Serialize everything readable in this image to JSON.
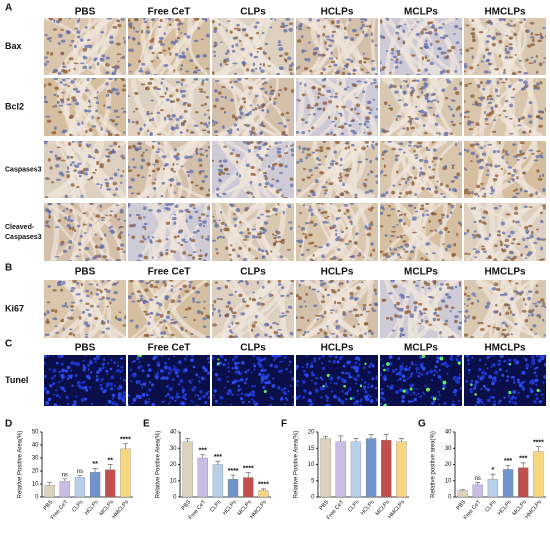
{
  "panels": [
    {
      "label": "A",
      "columns": [
        "PBS",
        "Free CeT",
        "CLPs",
        "HCLPs",
        "MCLPs",
        "HMCLPs"
      ],
      "rows": [
        [
          "Bax"
        ],
        [
          "Bcl2"
        ],
        [
          "Caspases3"
        ],
        [
          "Cleaved-",
          "Caspases3"
        ]
      ]
    },
    {
      "label": "B",
      "columns": [
        "PBS",
        "Free CeT",
        "CLPs",
        "HCLPs",
        "MCLPs",
        "HMCLPs"
      ],
      "rows": [
        [
          "Ki67"
        ]
      ]
    },
    {
      "label": "C",
      "columns": [
        "PBS",
        "Free CeT",
        "CLPs",
        "HCLPs",
        "MCLPs",
        "HMCLPs"
      ],
      "rows": [
        [
          "Tunel"
        ]
      ]
    }
  ],
  "chart_data": [
    {
      "type": "bar",
      "label": "D",
      "ylabel": "Relative Positive Area(%)",
      "categories": [
        "PBS",
        "Free CeT",
        "CLPs",
        "HCLPs",
        "MCLPs",
        "HMCLPs"
      ],
      "values": [
        9,
        12,
        15,
        19,
        21,
        37
      ],
      "errors": [
        2,
        2,
        1.5,
        3,
        4,
        4
      ],
      "significance": [
        null,
        "ns",
        "ns",
        "**",
        "**",
        "****"
      ],
      "colors": [
        "#ddd3bc",
        "#c9bde3",
        "#b9cfe9",
        "#7193cc",
        "#c0504d",
        "#f6d77f"
      ],
      "ylim": [
        0,
        50
      ],
      "yticks": [
        0,
        10,
        20,
        30,
        40,
        50
      ]
    },
    {
      "type": "bar",
      "label": "E",
      "ylabel": "Relative Positive Area(%)",
      "categories": [
        "PBS",
        "Free CeT",
        "CLPs",
        "HCLPs",
        "MCLPs",
        "HMCLPs"
      ],
      "values": [
        34,
        24,
        20,
        11,
        12,
        4
      ],
      "errors": [
        2,
        2,
        2,
        2.5,
        3,
        1
      ],
      "significance": [
        null,
        "***",
        "***",
        "****",
        "****",
        "****"
      ],
      "colors": [
        "#ddd3bc",
        "#c9bde3",
        "#b9cfe9",
        "#7193cc",
        "#c0504d",
        "#f6d77f"
      ],
      "ylim": [
        0,
        40
      ],
      "yticks": [
        0,
        10,
        20,
        30,
        40
      ]
    },
    {
      "type": "bar",
      "label": "F",
      "ylabel": "Relative Positive Area(%)",
      "categories": [
        "PBS",
        "Free CeT",
        "CLPs",
        "HCLPs",
        "MCLPs",
        "HMCLPs"
      ],
      "values": [
        18,
        17,
        17,
        18,
        17.5,
        17
      ],
      "errors": [
        0.7,
        1.8,
        1,
        1.2,
        1.8,
        1
      ],
      "significance": [
        null,
        null,
        null,
        null,
        null,
        null
      ],
      "colors": [
        "#ddd3bc",
        "#c9bde3",
        "#b9cfe9",
        "#7193cc",
        "#c0504d",
        "#f6d77f"
      ],
      "ylim": [
        0,
        20
      ],
      "yticks": [
        0,
        5,
        10,
        15,
        20
      ]
    },
    {
      "type": "bar",
      "label": "G",
      "ylabel": "Relative positive area(%)",
      "categories": [
        "PBS",
        "Free CeT",
        "CLPs",
        "HCLPs",
        "MCLPs",
        "HMCLPs"
      ],
      "values": [
        4,
        7.5,
        11,
        17,
        18,
        28
      ],
      "errors": [
        0.5,
        1.5,
        3,
        2.5,
        3,
        3
      ],
      "significance": [
        null,
        "ns",
        "*",
        "***",
        "***",
        "****"
      ],
      "colors": [
        "#ddd3bc",
        "#c9bde3",
        "#b9cfe9",
        "#7193cc",
        "#c0504d",
        "#f6d77f"
      ],
      "ylim": [
        0,
        40
      ],
      "yticks": [
        0,
        10,
        20,
        30,
        40
      ]
    }
  ]
}
